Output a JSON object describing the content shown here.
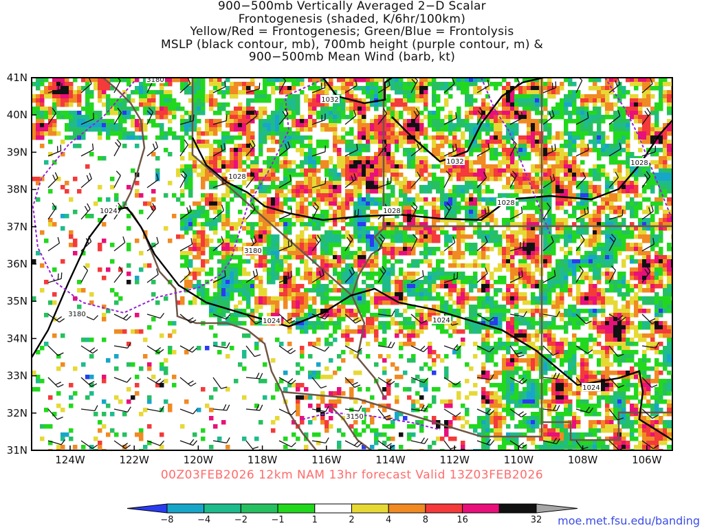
{
  "title_lines": [
    "900−500mb Vertically Averaged 2−D Scalar",
    "Frontogenesis (shaded, K/6hr/100km)",
    "Yellow/Red = Frontogenesis;  Green/Blue = Frontolysis",
    "MSLP (black contour, mb), 700mb height (purple contour, m) &",
    "900−500mb Mean Wind (barb, kt)"
  ],
  "valid_line": "00Z03FEB2026 12km NAM 13hr forecast Valid 13Z03FEB2026",
  "credit": "moe.met.fsu.edu/banding",
  "axes": {
    "lat_labels": [
      "41N",
      "40N",
      "39N",
      "38N",
      "37N",
      "36N",
      "35N",
      "34N",
      "33N",
      "32N",
      "31N"
    ],
    "lon_labels": [
      "124W",
      "122W",
      "120W",
      "118W",
      "116W",
      "114W",
      "112W",
      "110W",
      "108W",
      "106W"
    ]
  },
  "contour_labels": {
    "mslp": [
      "1032",
      "1032",
      "1028",
      "1028",
      "1028",
      "1028",
      "1024",
      "1024",
      "1024",
      "1024"
    ],
    "height": [
      "3180",
      "3180",
      "3180",
      "3150"
    ]
  },
  "colorbar": {
    "labels": [
      "−8",
      "−4",
      "−2",
      "−1",
      "1",
      "2",
      "4",
      "8",
      "16",
      "32"
    ],
    "colors": [
      "#2a3cf0",
      "#18a6c8",
      "#1ebc8c",
      "#27c060",
      "#22d81e",
      "#ffffff",
      "#e6d936",
      "#f08a22",
      "#f43a3a",
      "#e8107a",
      "#111111",
      "#a6a6a6"
    ]
  },
  "colors": {
    "state_border": "#6e5646",
    "mslp": "#000000",
    "height": "#9a1fd8",
    "valid_text": "#ff6b6b",
    "credit_text": "#3a4ce6"
  }
}
